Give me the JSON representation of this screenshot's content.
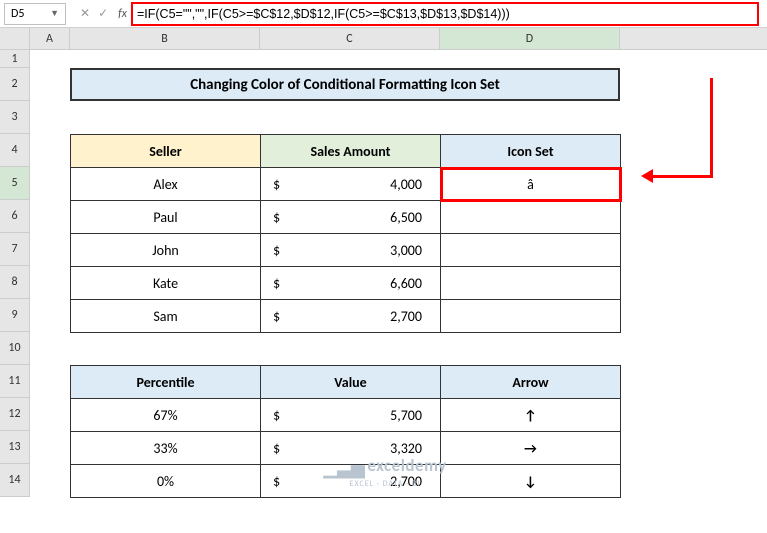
{
  "namebox": {
    "value": "D5"
  },
  "formula": {
    "value": "=IF(C5=\"\",\"\",IF(C5>=$C$12,$D$12,IF(C5>=$C$13,$D$13,$D$14)))"
  },
  "cols": {
    "A": "A",
    "B": "B",
    "C": "C",
    "D": "D"
  },
  "rows": {
    "r1": "1",
    "r2": "2",
    "r3": "3",
    "r4": "4",
    "r5": "5",
    "r6": "6",
    "r7": "7",
    "r8": "8",
    "r9": "9",
    "r10": "10",
    "r11": "11",
    "r12": "12",
    "r13": "13",
    "r14": "14"
  },
  "title": "Changing Color of Conditional Formatting Icon Set",
  "tbl1": {
    "headers": {
      "seller": "Seller",
      "sales": "Sales Amount",
      "icon": "Icon Set"
    },
    "rows": [
      {
        "seller": "Alex",
        "cur": "$",
        "amt": "4,000",
        "icon": "â"
      },
      {
        "seller": "Paul",
        "cur": "$",
        "amt": "6,500",
        "icon": ""
      },
      {
        "seller": "John",
        "cur": "$",
        "amt": "3,000",
        "icon": ""
      },
      {
        "seller": "Kate",
        "cur": "$",
        "amt": "6,600",
        "icon": ""
      },
      {
        "seller": "Sam",
        "cur": "$",
        "amt": "2,700",
        "icon": ""
      }
    ]
  },
  "tbl2": {
    "headers": {
      "pct": "Percentile",
      "val": "Value",
      "arrow": "Arrow"
    },
    "rows": [
      {
        "pct": "67%",
        "cur": "$",
        "val": "5,700",
        "arrow": "↑"
      },
      {
        "pct": "33%",
        "cur": "$",
        "val": "3,320",
        "arrow": "→"
      },
      {
        "pct": "0%",
        "cur": "$",
        "val": "2,700",
        "arrow": "↓"
      }
    ]
  },
  "watermark": {
    "main": "exceldemy",
    "sub": "EXCEL · DATA · BI"
  },
  "colors": {
    "header_blue": "#ddebf7",
    "header_yellow": "#fff2cc",
    "header_green": "#e2efda",
    "sel_green": "#d4e6d4",
    "callout_red": "#ff0000",
    "grid_border": "#333333"
  }
}
